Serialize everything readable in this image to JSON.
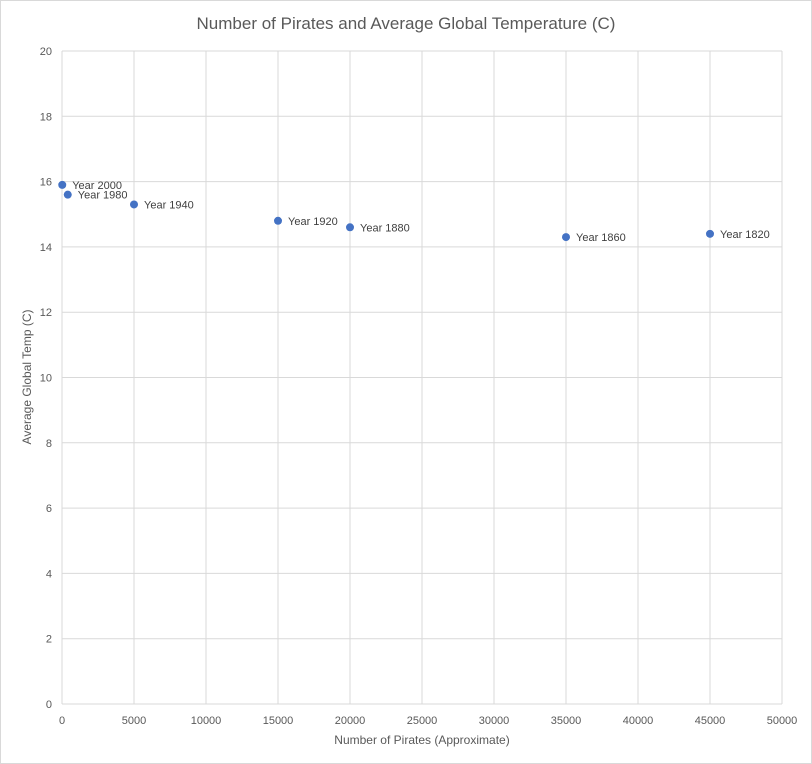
{
  "chart_data": {
    "type": "scatter",
    "title": "Number of Pirates and Average Global Temperature  (C)",
    "xlabel": "Number of Pirates (Approximate)",
    "ylabel": "Average   Global Temp (C)",
    "xlim": [
      0,
      50000
    ],
    "ylim": [
      0,
      20
    ],
    "xticks": [
      "0",
      "5000",
      "10000",
      "15000",
      "20000",
      "25000",
      "30000",
      "35000",
      "40000",
      "45000",
      "50000"
    ],
    "yticks": [
      "0",
      "2",
      "4",
      "6",
      "8",
      "10",
      "12",
      "14",
      "16",
      "18",
      "20"
    ],
    "grid": true,
    "legend": "none",
    "color": "#4472c4",
    "points": [
      {
        "x": 45000,
        "y": 14.4,
        "label": "Year 1820"
      },
      {
        "x": 35000,
        "y": 14.3,
        "label": "Year 1860"
      },
      {
        "x": 20000,
        "y": 14.6,
        "label": "Year 1880"
      },
      {
        "x": 15000,
        "y": 14.8,
        "label": "Year 1920"
      },
      {
        "x": 5000,
        "y": 15.3,
        "label": "Year 1940"
      },
      {
        "x": 400,
        "y": 15.6,
        "label": "Year 1980"
      },
      {
        "x": 17,
        "y": 15.9,
        "label": "Year 2000"
      }
    ]
  }
}
